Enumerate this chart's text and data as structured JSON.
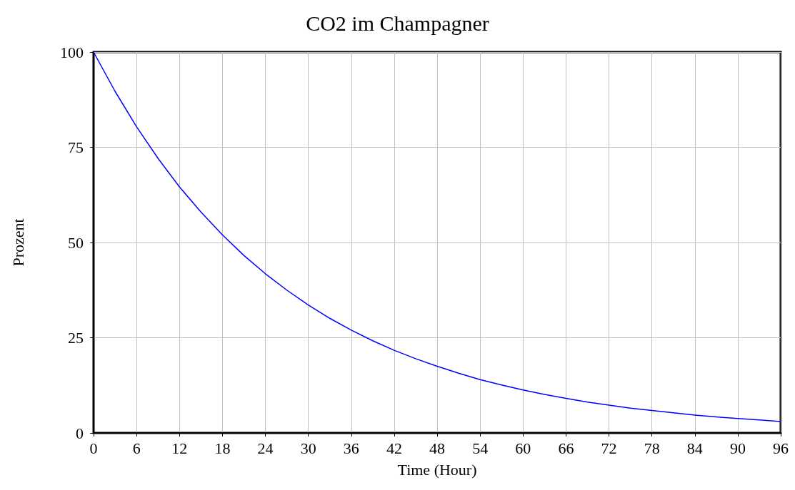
{
  "chart_data": {
    "type": "line",
    "title": "CO2 im Champagner",
    "xlabel": "Time (Hour)",
    "ylabel": "Prozent",
    "x": [
      0,
      3,
      6,
      9,
      12,
      15,
      18,
      21,
      24,
      27,
      30,
      33,
      36,
      39,
      42,
      45,
      48,
      51,
      54,
      57,
      60,
      63,
      66,
      69,
      72,
      75,
      78,
      81,
      84,
      87,
      90,
      93,
      96
    ],
    "series": [
      {
        "color": "#0000ff",
        "values": [
          100,
          89.7,
          80.4,
          72.1,
          64.6,
          58.0,
          52.0,
          46.6,
          41.8,
          37.5,
          33.6,
          30.1,
          27.0,
          24.2,
          21.7,
          19.5,
          17.5,
          15.7,
          14.0,
          12.6,
          11.3,
          10.1,
          9.1,
          8.1,
          7.3,
          6.5,
          5.9,
          5.3,
          4.7,
          4.2,
          3.8,
          3.4,
          3.0
        ]
      }
    ],
    "xlim": [
      0,
      96
    ],
    "xticks": [
      0,
      6,
      12,
      18,
      24,
      30,
      36,
      42,
      48,
      54,
      60,
      66,
      72,
      78,
      84,
      90,
      96
    ],
    "ylim": [
      0,
      100
    ],
    "yticks": [
      0,
      25,
      50,
      75,
      100
    ],
    "grid": true,
    "marker": "none",
    "line_style": "solid"
  }
}
